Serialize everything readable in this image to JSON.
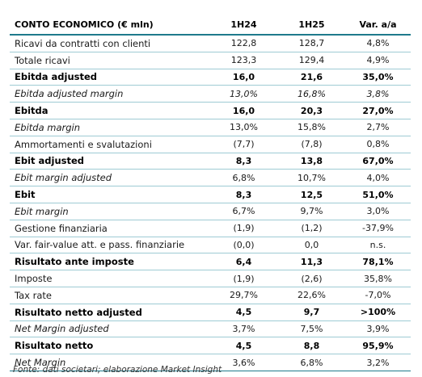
{
  "table": {
    "headers": [
      "CONTO ECONOMICO (€ mln)",
      "1H24",
      "1H25",
      "Var. a/a"
    ],
    "rows": [
      {
        "label": "Ricavi da contratti con clienti",
        "h24": "122,8",
        "h25": "128,7",
        "var": "4,8%",
        "style": "normal"
      },
      {
        "label": "Totale ricavi",
        "h24": "123,3",
        "h25": "129,4",
        "var": "4,9%",
        "style": "normal"
      },
      {
        "label": "Ebitda adjusted",
        "h24": "16,0",
        "h25": "21,6",
        "var": "35,0%",
        "style": "bold"
      },
      {
        "label": "Ebitda adjusted margin",
        "h24": "13,0%",
        "h25": "16,8%",
        "var": "3,8%",
        "style": "italic-all"
      },
      {
        "label": "Ebitda",
        "h24": "16,0",
        "h25": "20,3",
        "var": "27,0%",
        "style": "bold"
      },
      {
        "label": "Ebitda margin",
        "h24": "13,0%",
        "h25": "15,8%",
        "var": "2,7%",
        "style": "italic"
      },
      {
        "label": "Ammortamenti e svalutazioni",
        "h24": "(7,7)",
        "h25": "(7,8)",
        "var": "0,8%",
        "style": "normal"
      },
      {
        "label": "Ebit adjusted",
        "h24": "8,3",
        "h25": "13,8",
        "var": "67,0%",
        "style": "bold"
      },
      {
        "label": "Ebit margin adjusted",
        "h24": "6,8%",
        "h25": "10,7%",
        "var": "4,0%",
        "style": "italic"
      },
      {
        "label": "Ebit",
        "h24": "8,3",
        "h25": "12,5",
        "var": "51,0%",
        "style": "bold"
      },
      {
        "label": "Ebit margin",
        "h24": "6,7%",
        "h25": "9,7%",
        "var": "3,0%",
        "style": "italic"
      },
      {
        "label": "Gestione finanziaria",
        "h24": "(1,9)",
        "h25": "(1,2)",
        "var": "-37,9%",
        "style": "normal"
      },
      {
        "label": "Var. fair-value att. e pass. finanziarie",
        "h24": "(0,0)",
        "h25": "0,0",
        "var": "n.s.",
        "style": "normal"
      },
      {
        "label": "Risultato ante imposte",
        "h24": "6,4",
        "h25": "11,3",
        "var": "78,1%",
        "style": "bold"
      },
      {
        "label": "Imposte",
        "h24": "(1,9)",
        "h25": "(2,6)",
        "var": "35,8%",
        "style": "normal"
      },
      {
        "label": "Tax rate",
        "h24": "29,7%",
        "h25": "22,6%",
        "var": "-7,0%",
        "style": "normal"
      },
      {
        "label": "Risultato netto adjusted",
        "h24": "4,5",
        "h25": "9,7",
        "var": ">100%",
        "style": "bold"
      },
      {
        "label": "Net Margin adjusted",
        "h24": "3,7%",
        "h25": "7,5%",
        "var": "3,9%",
        "style": "italic"
      },
      {
        "label": "Risultato netto",
        "h24": "4,5",
        "h25": "8,8",
        "var": "95,9%",
        "style": "bold"
      },
      {
        "label": "Net Margin",
        "h24": "3,6%",
        "h25": "6,8%",
        "var": "3,2%",
        "style": "italic"
      }
    ]
  },
  "source": "Fonte: dati societari; elaborazione Market Insight",
  "colors": {
    "rule_dark": "#1e7a8c",
    "rule_light": "#9ecbd4"
  }
}
